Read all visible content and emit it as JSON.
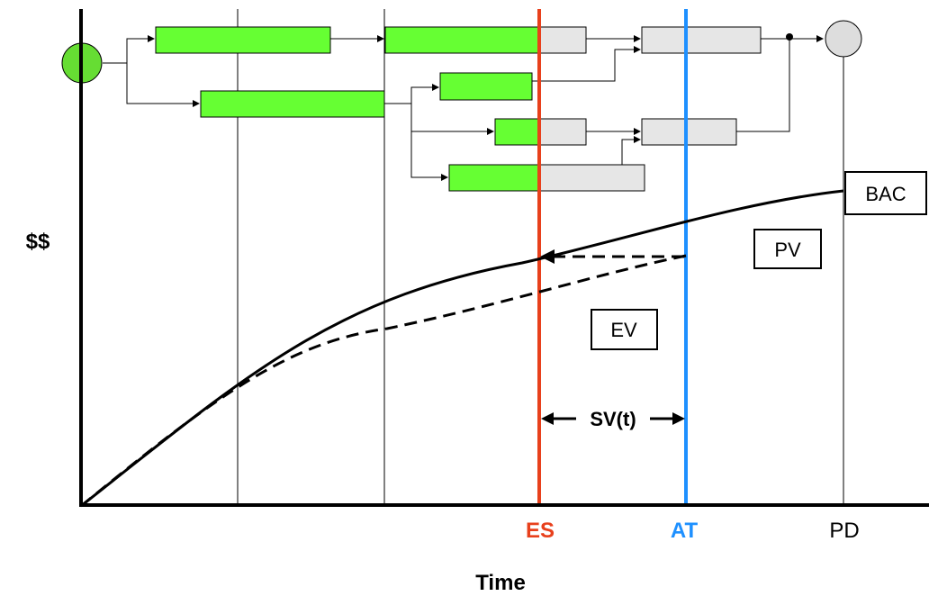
{
  "labels": {
    "y_axis": "$$",
    "x_axis": "Time",
    "es": "ES",
    "at": "AT",
    "pd": "PD",
    "sv": "SV(t)",
    "bac": "BAC",
    "pv": "PV",
    "ev": "EV"
  },
  "colors": {
    "es_line": "#e8401c",
    "at_line": "#1e90ff",
    "complete_fill": "#66ff33",
    "remaining_fill": "#e6e6e6",
    "start_node": "#66dd33",
    "end_node": "#dddddd"
  },
  "curves": {
    "pv": "solid",
    "ev": "dashed"
  }
}
